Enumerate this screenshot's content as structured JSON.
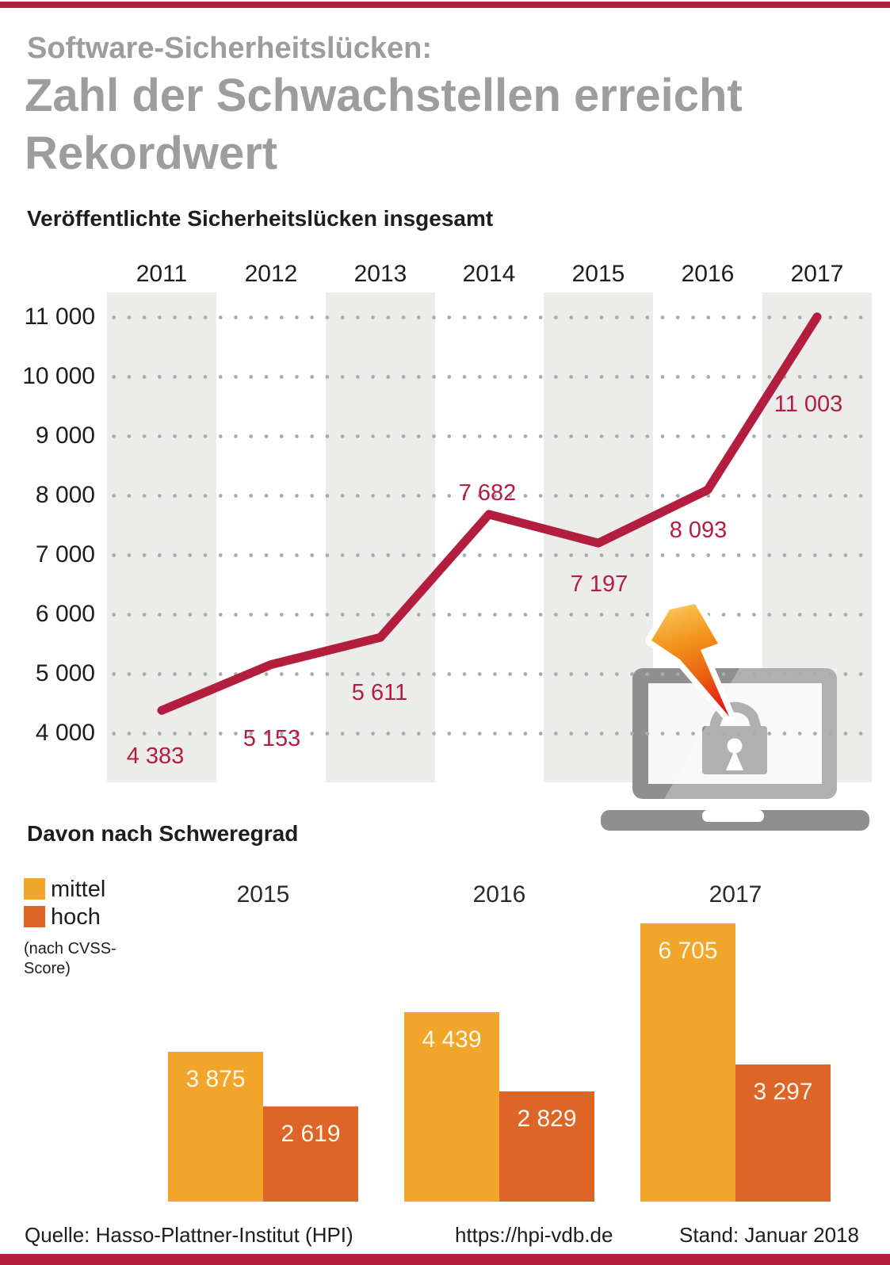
{
  "accent_color": "#b41e3e",
  "header": {
    "kicker": "Software-Sicherheitslücken:",
    "headline_line1": "Zahl der Schwachstellen erreicht",
    "headline_line2": "Rekordwert"
  },
  "chart_data": [
    {
      "type": "line",
      "title": "Veröffentlichte Sicherheitslücken insgesamt",
      "x": [
        "2011",
        "2012",
        "2013",
        "2014",
        "2015",
        "2016",
        "2017"
      ],
      "values": [
        4383,
        5153,
        5611,
        7682,
        7197,
        8093,
        11003
      ],
      "value_labels": [
        "4 383",
        "5 153",
        "5 611",
        "7 682",
        "7 197",
        "8 093",
        "11 003"
      ],
      "y_ticks": [
        "11 000",
        "10 000",
        "9 000",
        "8 000",
        "7 000",
        "6 000",
        "5 000",
        "4 000"
      ],
      "ylim": [
        4000,
        11000
      ],
      "y_tick_step": 1000,
      "grid": "dotted-horizontal",
      "alternating_year_bands": true,
      "line_color": "#b41e3e",
      "band_color": "#ececeb",
      "legend_position": "none"
    },
    {
      "type": "bar",
      "title": "Davon nach Schweregrad",
      "categories": [
        "2015",
        "2016",
        "2017"
      ],
      "series": [
        {
          "name": "mittel",
          "color": "#f1a52b",
          "values": [
            3875,
            4439,
            6705
          ],
          "value_labels": [
            "3 875",
            "4 439",
            "6 705"
          ]
        },
        {
          "name": "hoch",
          "color": "#dd6528",
          "values": [
            2619,
            2829,
            3297
          ],
          "value_labels": [
            "2 619",
            "2 829",
            "3 297"
          ]
        }
      ],
      "legend_note": "(nach CVSS-Score)",
      "legend_position": "left"
    }
  ],
  "icons": {
    "device": "laptop-icon",
    "strike": "lightning-bolt-icon",
    "security": "open-padlock-icon"
  },
  "footer": {
    "source": "Quelle: Hasso-Plattner-Institut (HPI)",
    "url": "https://hpi-vdb.de",
    "status": "Stand: Januar 2018"
  }
}
